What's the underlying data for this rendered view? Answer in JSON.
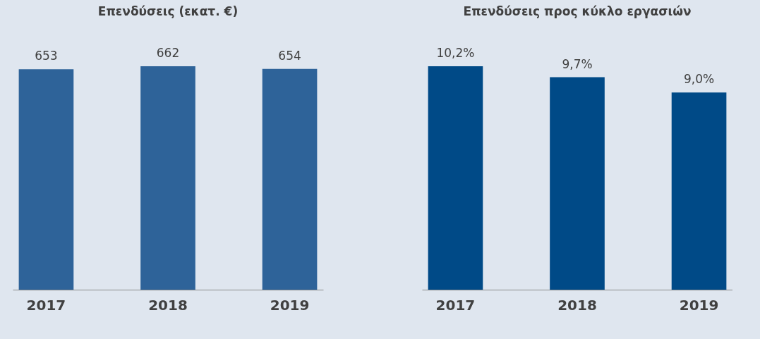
{
  "chart_data": [
    {
      "type": "bar",
      "title": "Επενδύσεις (εκατ. €)",
      "categories": [
        "2017",
        "2018",
        "2019"
      ],
      "values": [
        653,
        662,
        654
      ],
      "color": "#2e6399",
      "data_labels": true
    },
    {
      "type": "bar",
      "title": "Επενδύσεις προς κύκλο εργασιών",
      "categories": [
        "2017",
        "2018",
        "2019"
      ],
      "values": [
        10.2,
        9.7,
        9.0
      ],
      "value_labels": [
        "10,2%",
        "9,7%",
        "9,0%"
      ],
      "color": "#004a87"
    }
  ]
}
